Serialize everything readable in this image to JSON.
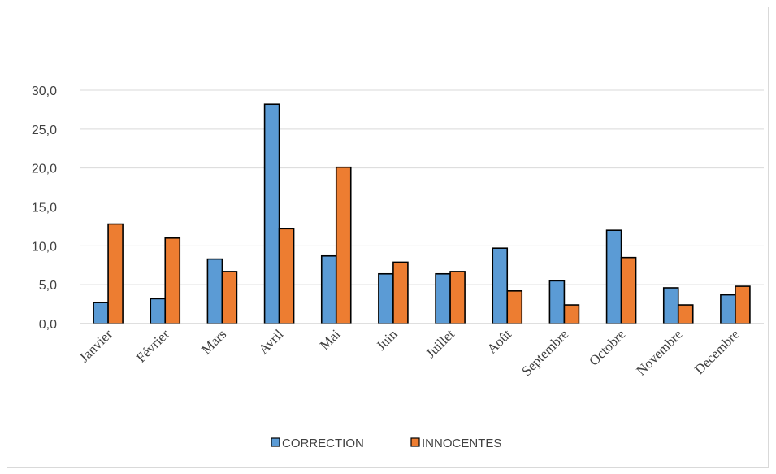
{
  "chart_data": {
    "type": "bar",
    "categories": [
      "Janvier",
      "Février",
      "Mars",
      "Avril",
      "Mai",
      "Juin",
      "Juillet",
      "Août",
      "Septembre",
      "Octobre",
      "Novembre",
      "Decembre"
    ],
    "series": [
      {
        "name": "CORRECTION",
        "color": "#5b9bd5",
        "values": [
          2.7,
          3.2,
          8.3,
          28.2,
          8.7,
          6.4,
          6.4,
          9.7,
          5.5,
          12.0,
          4.6,
          3.7
        ]
      },
      {
        "name": "INNOCENTES",
        "color": "#ed7d31",
        "values": [
          12.8,
          11.0,
          6.7,
          12.2,
          20.1,
          7.9,
          6.7,
          4.2,
          2.4,
          8.5,
          2.4,
          4.8
        ]
      }
    ],
    "ylim": [
      0,
      30
    ],
    "yticks": [
      "0,0",
      "5,0",
      "10,0",
      "15,0",
      "20,0",
      "25,0",
      "30,0"
    ],
    "ytick_values": [
      0,
      5,
      10,
      15,
      20,
      25,
      30
    ],
    "grid": true,
    "legend": "bottom",
    "title": "",
    "xlabel": "",
    "ylabel": ""
  }
}
